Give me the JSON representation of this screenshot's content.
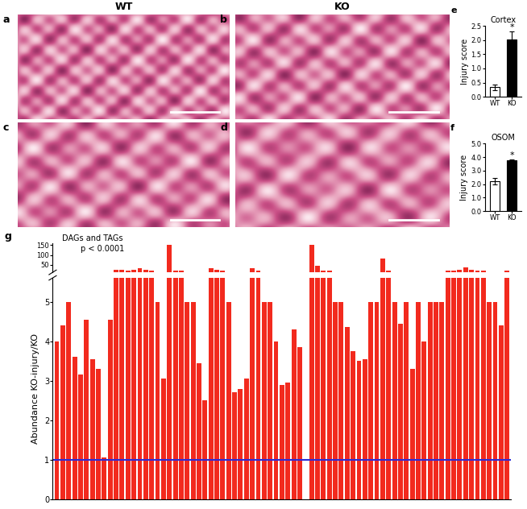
{
  "column_headers": [
    "WT",
    "KO"
  ],
  "micrographs": [
    "a",
    "b",
    "c",
    "d"
  ],
  "chart_data": [
    {
      "type": "bar",
      "panel_label": "e",
      "title": "Cortex",
      "ylabel": "Injury score",
      "categories": [
        "WT",
        "KO"
      ],
      "values": [
        0.33,
        2.03
      ],
      "errors": [
        0.1,
        0.28
      ],
      "colors": [
        "#ffffff",
        "#000000"
      ],
      "ylim": [
        0,
        2.5
      ],
      "yticks": [
        {
          "value": 0,
          "label": "0.0"
        },
        {
          "value": 0.5,
          "label": "0.5"
        },
        {
          "value": 1.0,
          "label": "1.0"
        },
        {
          "value": 1.5,
          "label": "1.5"
        },
        {
          "value": 2.0,
          "label": "2.0"
        },
        {
          "value": 2.5,
          "label": "2.5"
        }
      ],
      "annotations": [
        {
          "category": "KO",
          "text": "*"
        }
      ]
    },
    {
      "type": "bar",
      "panel_label": "f",
      "title": "OSOM",
      "ylabel": "Injury score",
      "categories": [
        "WT",
        "KO"
      ],
      "values": [
        2.2,
        3.75
      ],
      "errors": [
        0.25,
        0.1
      ],
      "colors": [
        "#ffffff",
        "#000000"
      ],
      "ylim": [
        0,
        5
      ],
      "yticks": [
        {
          "value": 0,
          "label": "0.0"
        },
        {
          "value": 1,
          "label": "1.0"
        },
        {
          "value": 2,
          "label": "2.0"
        },
        {
          "value": 3,
          "label": "3.0"
        },
        {
          "value": 4,
          "label": "4.0"
        },
        {
          "value": 5,
          "label": "5.0"
        }
      ],
      "annotations": [
        {
          "category": "KO",
          "text": "*"
        }
      ]
    },
    {
      "type": "bar",
      "panel_label": "g",
      "ylabel": "Abundance KO-injury/KO",
      "annotations": [
        "DAGs and TAGs",
        "p < 0.0001"
      ],
      "values": [
        4.0,
        4.4,
        5.0,
        3.6,
        3.15,
        4.55,
        3.55,
        3.3,
        1.05,
        4.55,
        25,
        22,
        20,
        22,
        30,
        25,
        20,
        5.0,
        3.05,
        150,
        20,
        18,
        5.0,
        5.0,
        3.45,
        2.5,
        30,
        25,
        20,
        5.0,
        2.7,
        2.8,
        3.05,
        30,
        20,
        5.0,
        5.0,
        4.0,
        2.9,
        2.95,
        4.3,
        3.85,
        null,
        150,
        45,
        20,
        18,
        5.0,
        5.0,
        4.35,
        3.75,
        3.5,
        3.55,
        5.0,
        5.0,
        80,
        20,
        5.0,
        4.45,
        5.0,
        3.3,
        5.0,
        4.0,
        5.0,
        5.0,
        5.0,
        20,
        20,
        25,
        35,
        25,
        20,
        20,
        5.0,
        5.0,
        4.4,
        20
      ],
      "color": "#f22a1e",
      "reference_value": 1,
      "ylim": [
        0,
        160
      ],
      "y_break": [
        5.6,
        10
      ],
      "yticks": [
        0,
        1,
        2,
        3,
        4,
        5,
        50,
        100,
        150
      ],
      "tick_labels": "y"
    }
  ]
}
